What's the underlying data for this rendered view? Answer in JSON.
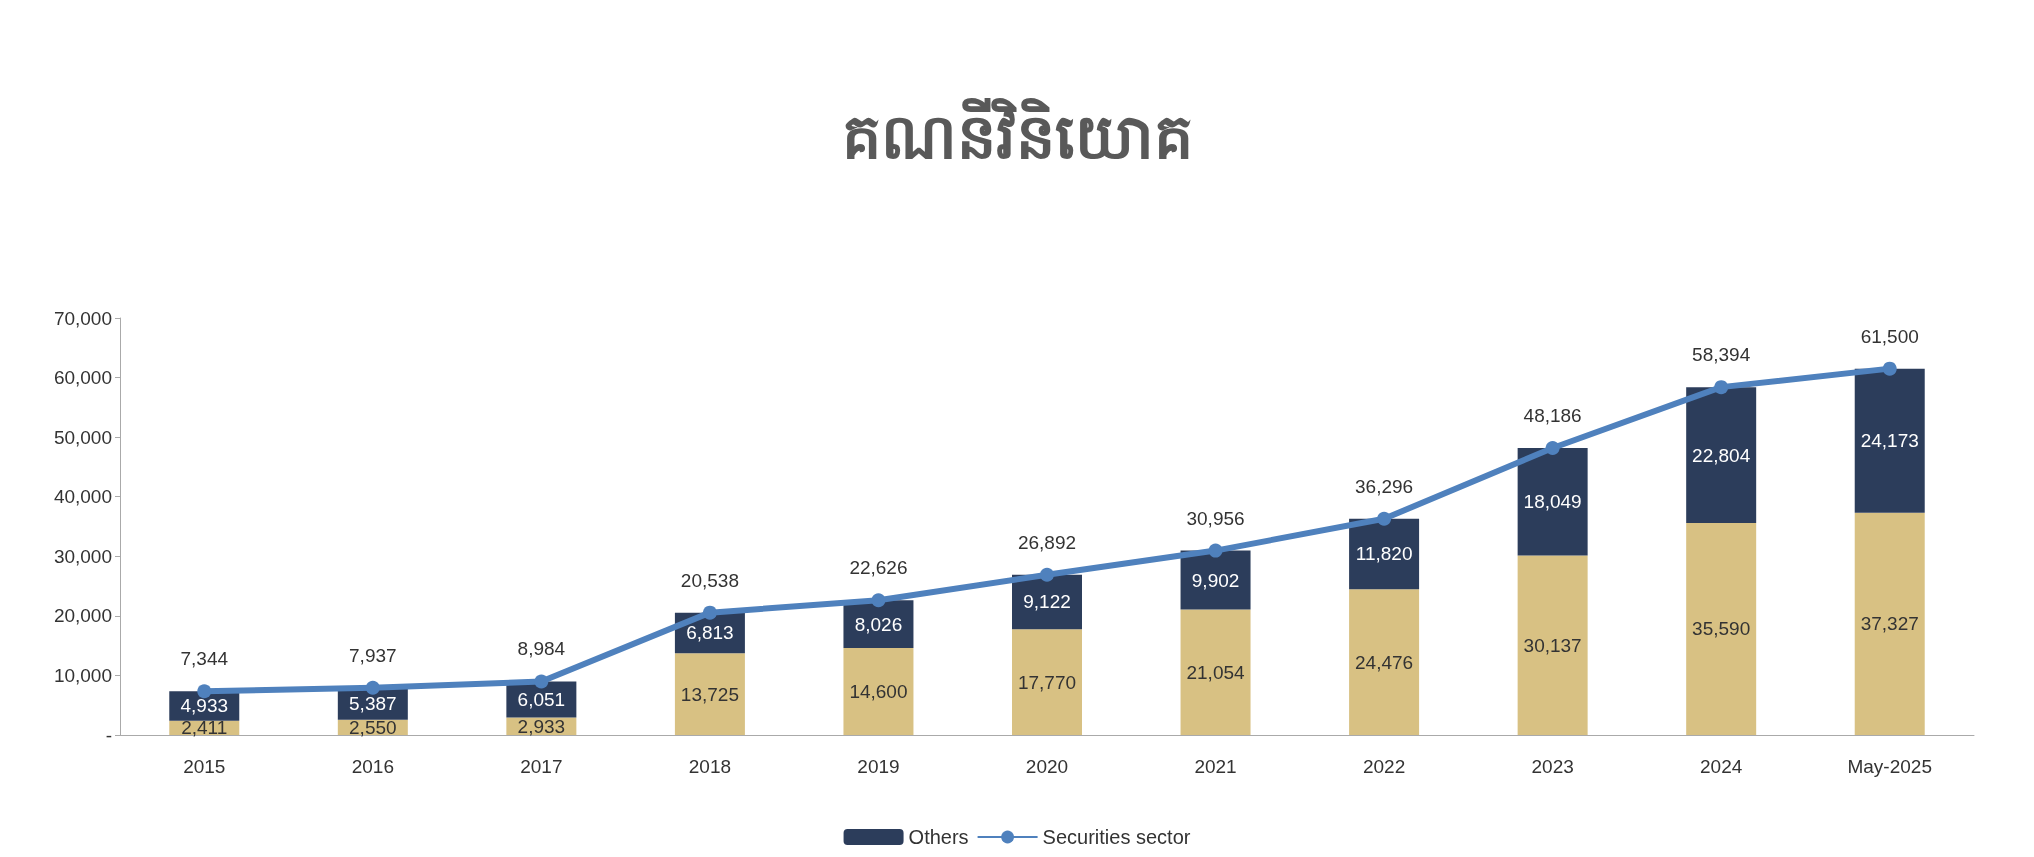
{
  "chart_data": {
    "type": "bar",
    "title": "គណនីវិនិយោគ",
    "categories": [
      "2015",
      "2016",
      "2017",
      "2018",
      "2019",
      "2020",
      "2021",
      "2022",
      "2023",
      "2024",
      "May-2025"
    ],
    "series": [
      {
        "color": "#d8c183",
        "values": [
          2411,
          2550,
          2933,
          13725,
          14600,
          17770,
          21054,
          24476,
          30137,
          35590,
          37327
        ],
        "value_labels": [
          "2,411",
          "2,550",
          "2,933",
          "13,725",
          "14,600",
          "17,770",
          "21,054",
          "24,476",
          "30,137",
          "35,590",
          "37,327"
        ]
      },
      {
        "name": "Others",
        "color": "#2c3d5b",
        "values": [
          4933,
          5387,
          6051,
          6813,
          8026,
          9122,
          9902,
          11820,
          18049,
          22804,
          24173
        ],
        "value_labels": [
          "4,933",
          "5,387",
          "6,051",
          "6,813",
          "8,026",
          "9,122",
          "9,902",
          "11,820",
          "18,049",
          "22,804",
          "24,173"
        ]
      },
      {
        "name": "Securities sector",
        "type": "line",
        "color": "#4f81bd",
        "values": [
          7344,
          7937,
          8984,
          20538,
          22626,
          26892,
          30956,
          36296,
          48186,
          58394,
          61500
        ],
        "value_labels": [
          "7,344",
          "7,937",
          "8,984",
          "20,538",
          "22,626",
          "26,892",
          "30,956",
          "36,296",
          "48,186",
          "58,394",
          "61,500"
        ]
      }
    ],
    "stacked": true,
    "ylim": [
      0,
      70000
    ],
    "yticks": [
      {
        "value": 0,
        "label": "-"
      },
      {
        "value": 10000,
        "label": "10,000"
      },
      {
        "value": 20000,
        "label": "20,000"
      },
      {
        "value": 30000,
        "label": "30,000"
      },
      {
        "value": 40000,
        "label": "40,000"
      },
      {
        "value": 50000,
        "label": "50,000"
      },
      {
        "value": 60000,
        "label": "60,000"
      },
      {
        "value": 70000,
        "label": "70,000"
      }
    ],
    "grid": false,
    "legend": "bottom",
    "marker": "circle"
  }
}
